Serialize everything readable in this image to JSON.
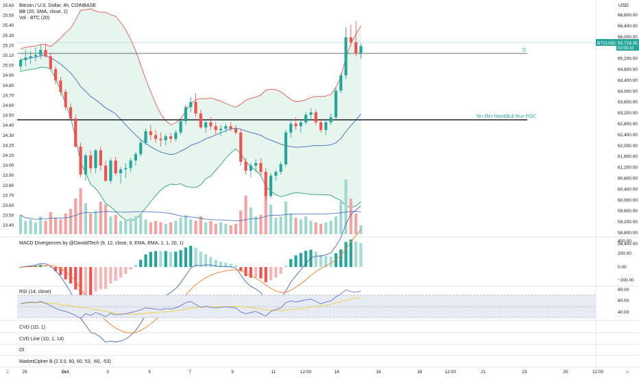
{
  "header": {
    "title": "Bitcoin / U.S. Dollar, 4h, COINBASE",
    "bb_label": "BB (20, SMA, close, 2)",
    "vol_label": "Vol · BTC (20)",
    "currency": "USD",
    "symbol_tag": "BTCUSD",
    "price_tag": "65,718.35",
    "timer_tag": "02:08:10"
  },
  "left_axis_ticks": [
    "25.60",
    "25.50",
    "25.40",
    "25.30",
    "25.20",
    "25.10",
    "25.00",
    "24.90",
    "24.80",
    "24.70",
    "24.60",
    "24.50",
    "24.40",
    "24.30",
    "24.20",
    "24.10",
    "24.00",
    "23.90",
    "23.80",
    "23.70",
    "23.60",
    "23.50",
    "23.40"
  ],
  "right_axis_ticks": [
    "66,800.00",
    "66,400.00",
    "66,000.00",
    "65,600.00",
    "65,200.00",
    "64,800.00",
    "64,400.00",
    "64,000.00",
    "63,600.00",
    "63,200.00",
    "62,800.00",
    "62,400.00",
    "62,000.00",
    "61,600.00",
    "61,200.00",
    "60,800.00",
    "60,400.00",
    "60,000.00",
    "59,600.00",
    "59,200.00",
    "58,800.00",
    "58,400.00"
  ],
  "levels": {
    "d_label": "D",
    "poc_label": "W+3M+Year&Bull Run POC"
  },
  "macd": {
    "label": "MACD Divergences by @DaviddTech (9, 12, close, 9, EMA, EMA, 1, 1, 20, 1)",
    "ticks": [
      "400.00",
      "200.00",
      "0.00",
      "−200.00"
    ]
  },
  "rsi": {
    "label": "RSI (14, close)",
    "ticks": [
      "80.00",
      "60.00",
      "40.00"
    ]
  },
  "panes": {
    "cvd": "CVD (1D, 1)",
    "cvd_line": "CVD Line (1D, 1, 14)",
    "oi": "OI",
    "cipher": "MarketCipher B (2.3.0, 60, 60, 53, -60, -53)"
  },
  "x_axis_ticks": [
    "29",
    "Oct",
    "3",
    "5",
    "7",
    "9",
    "11",
    "12:00",
    "14",
    "16",
    "18",
    "12:00",
    "21",
    "23",
    "25",
    "12:00"
  ],
  "corner_left": "Z",
  "corner_right": "A",
  "colors": {
    "up": "#26a69a",
    "down": "#ef5350",
    "bb_upper": "#e05656",
    "bb_lower": "#2e9d6e",
    "bb_basis": "#3f67b3",
    "bb_fill": "#e6f6ee",
    "rsi_line": "#6b74c9",
    "rsi_ma": "#f0d44c"
  },
  "chart_data": {
    "type": "candlestick",
    "timeframe": "4h",
    "ylim_usd": [
      58300,
      66950
    ],
    "candles": [
      [
        64900,
        65250,
        64700,
        65150
      ],
      [
        65150,
        65550,
        64900,
        65250
      ],
      [
        65250,
        65500,
        65000,
        65300
      ],
      [
        65300,
        65650,
        65100,
        65350
      ],
      [
        65350,
        65750,
        65200,
        65550
      ],
      [
        65550,
        65800,
        65250,
        65300
      ],
      [
        65300,
        65400,
        64750,
        64800
      ],
      [
        64800,
        64900,
        64200,
        64350
      ],
      [
        64350,
        64500,
        63750,
        63900
      ],
      [
        63900,
        64000,
        63150,
        63300
      ],
      [
        63300,
        63450,
        62800,
        62850
      ],
      [
        62850,
        63000,
        61700,
        61750
      ],
      [
        61750,
        61900,
        60550,
        60650
      ],
      [
        60650,
        61500,
        60400,
        61400
      ],
      [
        61400,
        61600,
        60700,
        60900
      ],
      [
        60900,
        61650,
        60700,
        61600
      ],
      [
        61600,
        61750,
        60800,
        61000
      ],
      [
        61000,
        61200,
        60350,
        60400
      ],
      [
        60400,
        61300,
        60300,
        61200
      ],
      [
        61200,
        61350,
        60600,
        60700
      ],
      [
        60700,
        60950,
        60300,
        60850
      ],
      [
        60850,
        61100,
        60500,
        60900
      ],
      [
        60900,
        61300,
        60750,
        61200
      ],
      [
        61200,
        61550,
        61000,
        61450
      ],
      [
        61450,
        62000,
        61350,
        61900
      ],
      [
        61900,
        62450,
        61800,
        62350
      ],
      [
        62350,
        62600,
        62000,
        62200
      ],
      [
        62200,
        62400,
        61900,
        62050
      ],
      [
        62050,
        62300,
        61750,
        62000
      ],
      [
        62000,
        62250,
        61800,
        62150
      ],
      [
        62150,
        62300,
        61900,
        62050
      ],
      [
        62050,
        62400,
        61950,
        62300
      ],
      [
        62300,
        62850,
        62200,
        62750
      ],
      [
        62750,
        63400,
        62600,
        63300
      ],
      [
        63300,
        63700,
        63100,
        63500
      ],
      [
        63500,
        63850,
        62900,
        63050
      ],
      [
        63050,
        63200,
        62450,
        62500
      ],
      [
        62500,
        62800,
        62300,
        62700
      ],
      [
        62700,
        62900,
        62400,
        62550
      ],
      [
        62550,
        62700,
        62200,
        62400
      ],
      [
        62400,
        62600,
        62150,
        62450
      ],
      [
        62450,
        62650,
        62300,
        62550
      ],
      [
        62550,
        62700,
        62350,
        62450
      ],
      [
        62450,
        62600,
        62200,
        62300
      ],
      [
        62300,
        62450,
        61000,
        61150
      ],
      [
        61150,
        61300,
        60650,
        60800
      ],
      [
        60800,
        61100,
        60550,
        61000
      ],
      [
        61000,
        61250,
        60750,
        61100
      ],
      [
        61100,
        61300,
        60600,
        60750
      ],
      [
        60750,
        60900,
        59650,
        59800
      ],
      [
        59800,
        60700,
        59700,
        60600
      ],
      [
        60600,
        60850,
        60400,
        60750
      ],
      [
        60750,
        61150,
        60650,
        61050
      ],
      [
        61050,
        62400,
        60950,
        62300
      ],
      [
        62300,
        62750,
        62100,
        62650
      ],
      [
        62650,
        62900,
        62400,
        62550
      ],
      [
        62550,
        62800,
        62300,
        62700
      ],
      [
        62700,
        63100,
        62600,
        63000
      ],
      [
        63000,
        63250,
        62800,
        63100
      ],
      [
        63100,
        63200,
        62600,
        62700
      ],
      [
        62700,
        62850,
        62300,
        62400
      ],
      [
        62400,
        62800,
        62200,
        62700
      ],
      [
        62700,
        63050,
        62600,
        62900
      ],
      [
        62900,
        64050,
        62800,
        63950
      ],
      [
        63950,
        64650,
        63850,
        64550
      ],
      [
        64550,
        66450,
        64400,
        66050
      ],
      [
        66050,
        66550,
        65700,
        65850
      ],
      [
        65850,
        66700,
        65300,
        65400
      ],
      [
        65400,
        65800,
        65200,
        65700
      ]
    ],
    "volume": [
      13,
      9,
      10,
      8,
      12,
      9,
      15,
      11,
      10,
      14,
      17,
      24,
      31,
      21,
      14,
      16,
      22,
      20,
      12,
      13,
      9,
      10,
      11,
      12,
      14,
      10,
      8,
      9,
      8,
      7,
      8,
      9,
      11,
      13,
      10,
      9,
      12,
      8,
      9,
      7,
      8,
      7,
      6,
      7,
      16,
      26,
      18,
      12,
      13,
      33,
      20,
      11,
      12,
      22,
      14,
      11,
      10,
      12,
      9,
      8,
      7,
      8,
      9,
      12,
      22,
      37,
      24,
      14,
      6
    ],
    "rsi": [
      55,
      57,
      58,
      57,
      59,
      56,
      52,
      47,
      44,
      42,
      39,
      35,
      30,
      38,
      35,
      40,
      37,
      33,
      39,
      36,
      37,
      38,
      40,
      42,
      45,
      48,
      47,
      46,
      45,
      47,
      46,
      48,
      52,
      57,
      59,
      54,
      49,
      51,
      49,
      48,
      49,
      50,
      49,
      48,
      41,
      38,
      40,
      42,
      38,
      34,
      42,
      45,
      48,
      57,
      60,
      58,
      60,
      62,
      63,
      59,
      55,
      58,
      60,
      67,
      72,
      79,
      76,
      75,
      77
    ]
  }
}
